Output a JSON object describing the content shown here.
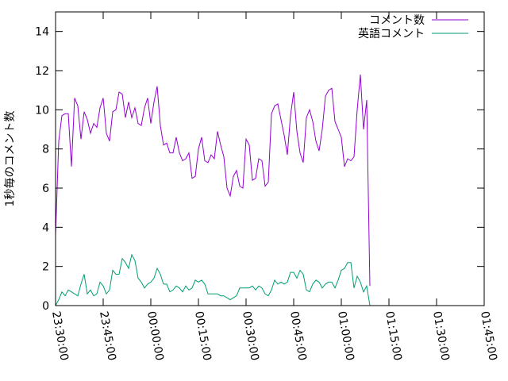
{
  "chart_data": {
    "type": "line",
    "title": "",
    "xlabel": "",
    "ylabel": "1秒毎のコメント数",
    "x_ticks": [
      "23:30:00",
      "23:45:00",
      "00:00:00",
      "00:15:00",
      "00:30:00",
      "00:45:00",
      "01:00:00",
      "01:15:00",
      "01:30:00",
      "01:45:00"
    ],
    "x_range_minutes": [
      0,
      135
    ],
    "ylim": [
      0,
      15
    ],
    "y_ticks": [
      0,
      2,
      4,
      6,
      8,
      10,
      12,
      14
    ],
    "grid": false,
    "legend_position": "top-right",
    "series": [
      {
        "name": "コメント数",
        "color": "#9400d3",
        "points": [
          [
            0.0,
            3.6
          ],
          [
            1.0,
            8.4
          ],
          [
            2.0,
            9.7
          ],
          [
            3.0,
            9.8
          ],
          [
            4.0,
            9.8
          ],
          [
            5.0,
            7.1
          ],
          [
            6.0,
            10.6
          ],
          [
            7.0,
            10.2
          ],
          [
            8.0,
            8.5
          ],
          [
            9.0,
            9.9
          ],
          [
            10.0,
            9.5
          ],
          [
            11.0,
            8.8
          ],
          [
            12.0,
            9.3
          ],
          [
            13.0,
            9.1
          ],
          [
            14.0,
            10.1
          ],
          [
            15.0,
            10.6
          ],
          [
            16.0,
            8.8
          ],
          [
            17.0,
            8.4
          ],
          [
            18.0,
            9.9
          ],
          [
            19.0,
            10.0
          ],
          [
            20.0,
            10.9
          ],
          [
            21.0,
            10.8
          ],
          [
            22.0,
            9.6
          ],
          [
            23.0,
            10.4
          ],
          [
            24.0,
            9.6
          ],
          [
            25.0,
            10.1
          ],
          [
            26.0,
            9.3
          ],
          [
            27.0,
            9.2
          ],
          [
            28.0,
            10.1
          ],
          [
            29.0,
            10.6
          ],
          [
            30.0,
            9.3
          ],
          [
            31.0,
            10.4
          ],
          [
            32.0,
            11.2
          ],
          [
            33.0,
            9.2
          ],
          [
            34.0,
            8.2
          ],
          [
            35.0,
            8.3
          ],
          [
            36.0,
            7.8
          ],
          [
            37.0,
            7.8
          ],
          [
            38.0,
            8.6
          ],
          [
            39.0,
            7.8
          ],
          [
            40.0,
            7.4
          ],
          [
            41.0,
            7.5
          ],
          [
            42.0,
            7.8
          ],
          [
            43.0,
            6.5
          ],
          [
            44.0,
            6.6
          ],
          [
            45.0,
            8.0
          ],
          [
            46.0,
            8.6
          ],
          [
            47.0,
            7.4
          ],
          [
            48.0,
            7.3
          ],
          [
            49.0,
            7.7
          ],
          [
            50.0,
            7.5
          ],
          [
            51.0,
            8.9
          ],
          [
            52.0,
            8.2
          ],
          [
            53.0,
            7.6
          ],
          [
            54.0,
            6.0
          ],
          [
            55.0,
            5.6
          ],
          [
            56.0,
            6.6
          ],
          [
            57.0,
            6.9
          ],
          [
            58.0,
            6.1
          ],
          [
            59.0,
            6.0
          ],
          [
            60.0,
            8.5
          ],
          [
            61.0,
            8.2
          ],
          [
            62.0,
            6.4
          ],
          [
            63.0,
            6.5
          ],
          [
            64.0,
            7.5
          ],
          [
            65.0,
            7.4
          ],
          [
            66.0,
            6.1
          ],
          [
            67.0,
            6.3
          ],
          [
            68.0,
            9.8
          ],
          [
            69.0,
            10.2
          ],
          [
            70.0,
            10.3
          ],
          [
            71.0,
            9.5
          ],
          [
            72.0,
            8.7
          ],
          [
            73.0,
            7.7
          ],
          [
            74.0,
            9.7
          ],
          [
            75.0,
            10.9
          ],
          [
            76.0,
            8.9
          ],
          [
            77.0,
            7.8
          ],
          [
            78.0,
            7.3
          ],
          [
            79.0,
            9.6
          ],
          [
            80.0,
            10.0
          ],
          [
            81.0,
            9.4
          ],
          [
            82.0,
            8.4
          ],
          [
            83.0,
            7.9
          ],
          [
            84.0,
            9.0
          ],
          [
            85.0,
            10.7
          ],
          [
            86.0,
            11.0
          ],
          [
            87.0,
            11.1
          ],
          [
            88.0,
            9.4
          ],
          [
            89.0,
            9.0
          ],
          [
            90.0,
            8.6
          ],
          [
            91.0,
            7.1
          ],
          [
            92.0,
            7.5
          ],
          [
            93.0,
            7.4
          ],
          [
            94.0,
            7.6
          ],
          [
            95.0,
            10.0
          ],
          [
            96.0,
            11.8
          ],
          [
            97.0,
            9.0
          ],
          [
            98.0,
            10.5
          ],
          [
            99.0,
            1.0
          ]
        ]
      },
      {
        "name": "英語コメント",
        "color": "#009e73",
        "points": [
          [
            0.0,
            0.0
          ],
          [
            1.0,
            0.3
          ],
          [
            2.0,
            0.7
          ],
          [
            3.0,
            0.5
          ],
          [
            4.0,
            0.8
          ],
          [
            5.0,
            0.7
          ],
          [
            6.0,
            0.6
          ],
          [
            7.0,
            0.5
          ],
          [
            8.0,
            1.1
          ],
          [
            9.0,
            1.6
          ],
          [
            10.0,
            0.6
          ],
          [
            11.0,
            0.8
          ],
          [
            12.0,
            0.5
          ],
          [
            13.0,
            0.6
          ],
          [
            14.0,
            1.2
          ],
          [
            15.0,
            1.0
          ],
          [
            16.0,
            0.6
          ],
          [
            17.0,
            0.8
          ],
          [
            18.0,
            1.8
          ],
          [
            19.0,
            1.6
          ],
          [
            20.0,
            1.6
          ],
          [
            21.0,
            2.4
          ],
          [
            22.0,
            2.2
          ],
          [
            23.0,
            1.9
          ],
          [
            24.0,
            2.6
          ],
          [
            25.0,
            2.3
          ],
          [
            26.0,
            1.4
          ],
          [
            27.0,
            1.2
          ],
          [
            28.0,
            0.9
          ],
          [
            29.0,
            1.1
          ],
          [
            30.0,
            1.2
          ],
          [
            31.0,
            1.4
          ],
          [
            32.0,
            1.9
          ],
          [
            33.0,
            1.6
          ],
          [
            34.0,
            1.1
          ],
          [
            35.0,
            1.1
          ],
          [
            36.0,
            0.7
          ],
          [
            37.0,
            0.8
          ],
          [
            38.0,
            1.0
          ],
          [
            39.0,
            0.9
          ],
          [
            40.0,
            0.7
          ],
          [
            41.0,
            1.0
          ],
          [
            42.0,
            0.8
          ],
          [
            43.0,
            0.9
          ],
          [
            44.0,
            1.3
          ],
          [
            45.0,
            1.2
          ],
          [
            46.0,
            1.3
          ],
          [
            47.0,
            1.1
          ],
          [
            48.0,
            0.6
          ],
          [
            49.0,
            0.6
          ],
          [
            50.0,
            0.6
          ],
          [
            51.0,
            0.6
          ],
          [
            52.0,
            0.5
          ],
          [
            53.0,
            0.5
          ],
          [
            54.0,
            0.4
          ],
          [
            55.0,
            0.3
          ],
          [
            56.0,
            0.4
          ],
          [
            57.0,
            0.5
          ],
          [
            58.0,
            0.9
          ],
          [
            59.0,
            0.9
          ],
          [
            60.0,
            0.9
          ],
          [
            61.0,
            0.9
          ],
          [
            62.0,
            1.0
          ],
          [
            63.0,
            0.8
          ],
          [
            64.0,
            1.0
          ],
          [
            65.0,
            0.9
          ],
          [
            66.0,
            0.6
          ],
          [
            67.0,
            0.5
          ],
          [
            68.0,
            0.8
          ],
          [
            69.0,
            1.3
          ],
          [
            70.0,
            1.1
          ],
          [
            71.0,
            1.2
          ],
          [
            72.0,
            1.1
          ],
          [
            73.0,
            1.2
          ],
          [
            74.0,
            1.7
          ],
          [
            75.0,
            1.7
          ],
          [
            76.0,
            1.4
          ],
          [
            77.0,
            1.8
          ],
          [
            78.0,
            1.6
          ],
          [
            79.0,
            0.8
          ],
          [
            80.0,
            0.7
          ],
          [
            81.0,
            1.1
          ],
          [
            82.0,
            1.3
          ],
          [
            83.0,
            1.2
          ],
          [
            84.0,
            0.9
          ],
          [
            85.0,
            1.1
          ],
          [
            86.0,
            1.2
          ],
          [
            87.0,
            1.2
          ],
          [
            88.0,
            0.9
          ],
          [
            89.0,
            1.3
          ],
          [
            90.0,
            1.8
          ],
          [
            91.0,
            1.9
          ],
          [
            92.0,
            2.2
          ],
          [
            93.0,
            2.2
          ],
          [
            94.0,
            0.9
          ],
          [
            95.0,
            1.5
          ],
          [
            96.0,
            1.2
          ],
          [
            97.0,
            0.7
          ],
          [
            98.0,
            1.0
          ],
          [
            99.0,
            0.0
          ]
        ]
      }
    ]
  }
}
